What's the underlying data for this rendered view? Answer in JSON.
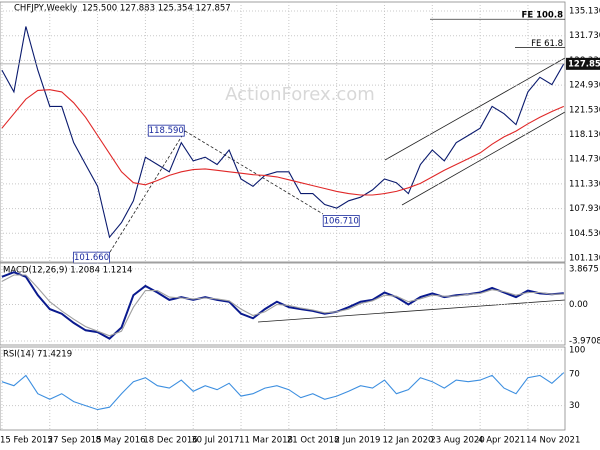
{
  "chart_data": [
    {
      "type": "line",
      "title": "CHFJPY,Weekly",
      "subtitle": "125.500 127.883 125.354 127.857",
      "watermark": "ActionForex.com",
      "x": [
        0,
        8,
        16,
        24,
        32,
        40,
        48,
        56,
        64,
        72,
        80,
        88,
        96,
        104,
        112,
        120,
        128,
        136,
        144,
        152,
        160,
        168,
        176,
        184,
        192,
        200,
        208,
        216,
        224,
        232,
        240,
        248,
        256,
        264,
        272,
        280,
        288,
        296,
        304,
        312,
        320,
        328,
        336,
        344,
        352,
        360,
        368,
        376
      ],
      "xlim": [
        -1.3,
        376.8
      ],
      "xticks": [
        {
          "value": 0,
          "label": "15 Feb 2015"
        },
        {
          "value": 32,
          "label": "27 Sep 2015"
        },
        {
          "value": 64,
          "label": "8 May 2016"
        },
        {
          "value": 96,
          "label": "18 Dec 2016"
        },
        {
          "value": 128,
          "label": "30 Jul 2017"
        },
        {
          "value": 160,
          "label": "11 Mar 2018"
        },
        {
          "value": 192,
          "label": "21 Oct 2018"
        },
        {
          "value": 224,
          "label": "2 Jun 2019"
        },
        {
          "value": 256,
          "label": "12 Jan 2020"
        },
        {
          "value": 288,
          "label": "23 Aug 2020"
        },
        {
          "value": 320,
          "label": "4 Apr 2021"
        },
        {
          "value": 352,
          "label": "14 Nov 2021"
        }
      ],
      "ylim": [
        100.58,
        136.37
      ],
      "yticks": [
        {
          "value": 135.13,
          "label": "135.130"
        },
        {
          "value": 131.73,
          "label": "131.730"
        },
        {
          "value": 128.33,
          "label": "128.330"
        },
        {
          "value": 124.93,
          "label": "124.930"
        },
        {
          "value": 121.53,
          "label": "121.530"
        },
        {
          "value": 118.13,
          "label": "118.130"
        },
        {
          "value": 114.73,
          "label": "114.730"
        },
        {
          "value": 111.33,
          "label": "111.330"
        },
        {
          "value": 107.93,
          "label": "107.930"
        },
        {
          "value": 104.53,
          "label": "104.530"
        },
        {
          "value": 101.13,
          "label": "101.130"
        }
      ],
      "grid": true,
      "series": [
        {
          "color": "#0a1a6e",
          "values": [
            127,
            124,
            133,
            127,
            122,
            122,
            117,
            114,
            111,
            104,
            106,
            109,
            115,
            114,
            113,
            117,
            114.5,
            115,
            114,
            116,
            112,
            111,
            112.5,
            113,
            113,
            110,
            110,
            108.5,
            108,
            109,
            109.5,
            110.5,
            112,
            111.5,
            110,
            114,
            116,
            114.5,
            117,
            118,
            119,
            122,
            121,
            119.5,
            124,
            126,
            125,
            127.857
          ]
        },
        {
          "color": "#e02828",
          "values": [
            119,
            121,
            123,
            124.2,
            124.3,
            124,
            122.5,
            120.5,
            118,
            115.5,
            113,
            111.5,
            111.2,
            111.8,
            112.5,
            113,
            113.3,
            113.4,
            113.2,
            113,
            112.8,
            112.6,
            112.5,
            112.3,
            111.9,
            111.5,
            111.1,
            110.7,
            110.3,
            110,
            109.8,
            109.8,
            110,
            110.3,
            110.8,
            111.4,
            112.3,
            113.2,
            114,
            114.8,
            115.6,
            116.8,
            117.8,
            118.6,
            119.6,
            120.5,
            121.3,
            122
          ]
        }
      ],
      "last_price": {
        "value": 127.857,
        "label": "127.857"
      },
      "levels": [
        {
          "text": "FE 100.8",
          "value": 134.0
        },
        {
          "text": "FE 61.8",
          "value": 130.1
        }
      ],
      "annotations": [
        {
          "text": "101.660",
          "x": 72,
          "value": 101.66
        },
        {
          "text": "118.590",
          "x": 122,
          "value": 118.59
        },
        {
          "text": "106.710",
          "x": 215,
          "value": 106.71
        }
      ]
    },
    {
      "type": "line",
      "title": "MACD(12,26,9) 1.2084 1.1214",
      "ylim": [
        -4.4,
        4.5
      ],
      "yticks": [
        3.8675,
        {
          "value": 0,
          "label": "0.00"
        },
        -3.9708
      ],
      "series": [
        {
          "color": "#0a1a8e",
          "values": [
            3,
            3.5,
            3,
            1,
            -0.5,
            -1,
            -2,
            -2.8,
            -3,
            -3.7,
            -2.5,
            1,
            2,
            1.3,
            0.5,
            0.8,
            0.5,
            0.8,
            0.5,
            0.3,
            -1,
            -1.5,
            -0.5,
            0.3,
            -0.3,
            -0.5,
            -0.7,
            -1,
            -0.8,
            -0.3,
            0.3,
            0.5,
            1.3,
            0.8,
            0,
            0.8,
            1.2,
            0.8,
            1,
            1.1,
            1.3,
            1.8,
            1.3,
            0.8,
            1.5,
            1.2,
            1.1,
            1.2084
          ]
        },
        {
          "color": "#a0a0a0",
          "values": [
            2.5,
            3.2,
            3.2,
            1.8,
            0.3,
            -0.7,
            -1.6,
            -2.4,
            -2.9,
            -3.4,
            -2.9,
            -0.3,
            1.5,
            1.5,
            0.8,
            0.7,
            0.6,
            0.7,
            0.6,
            0.4,
            -0.5,
            -1.2,
            -0.8,
            0,
            -0.1,
            -0.4,
            -0.6,
            -0.9,
            -0.8,
            -0.5,
            0.1,
            0.4,
            1,
            0.9,
            0.3,
            0.6,
            1,
            0.9,
            0.9,
            1.1,
            1.2,
            1.6,
            1.4,
            1,
            1.3,
            1.3,
            1.1,
            1.1214
          ]
        }
      ]
    },
    {
      "type": "line",
      "title": "RSI(14) 71.4219",
      "ylim": [
        -0.6,
        103.6
      ],
      "yticks": [
        100,
        70,
        30
      ],
      "series": [
        {
          "color": "#3d8fe0",
          "values": [
            60,
            55,
            68,
            45,
            38,
            45,
            35,
            30,
            25,
            28,
            45,
            60,
            65,
            55,
            52,
            62,
            48,
            55,
            50,
            58,
            42,
            45,
            52,
            55,
            50,
            40,
            45,
            38,
            42,
            48,
            55,
            52,
            62,
            45,
            50,
            65,
            60,
            52,
            62,
            60,
            62,
            68,
            52,
            45,
            65,
            68,
            58,
            71.4219
          ]
        }
      ]
    }
  ]
}
